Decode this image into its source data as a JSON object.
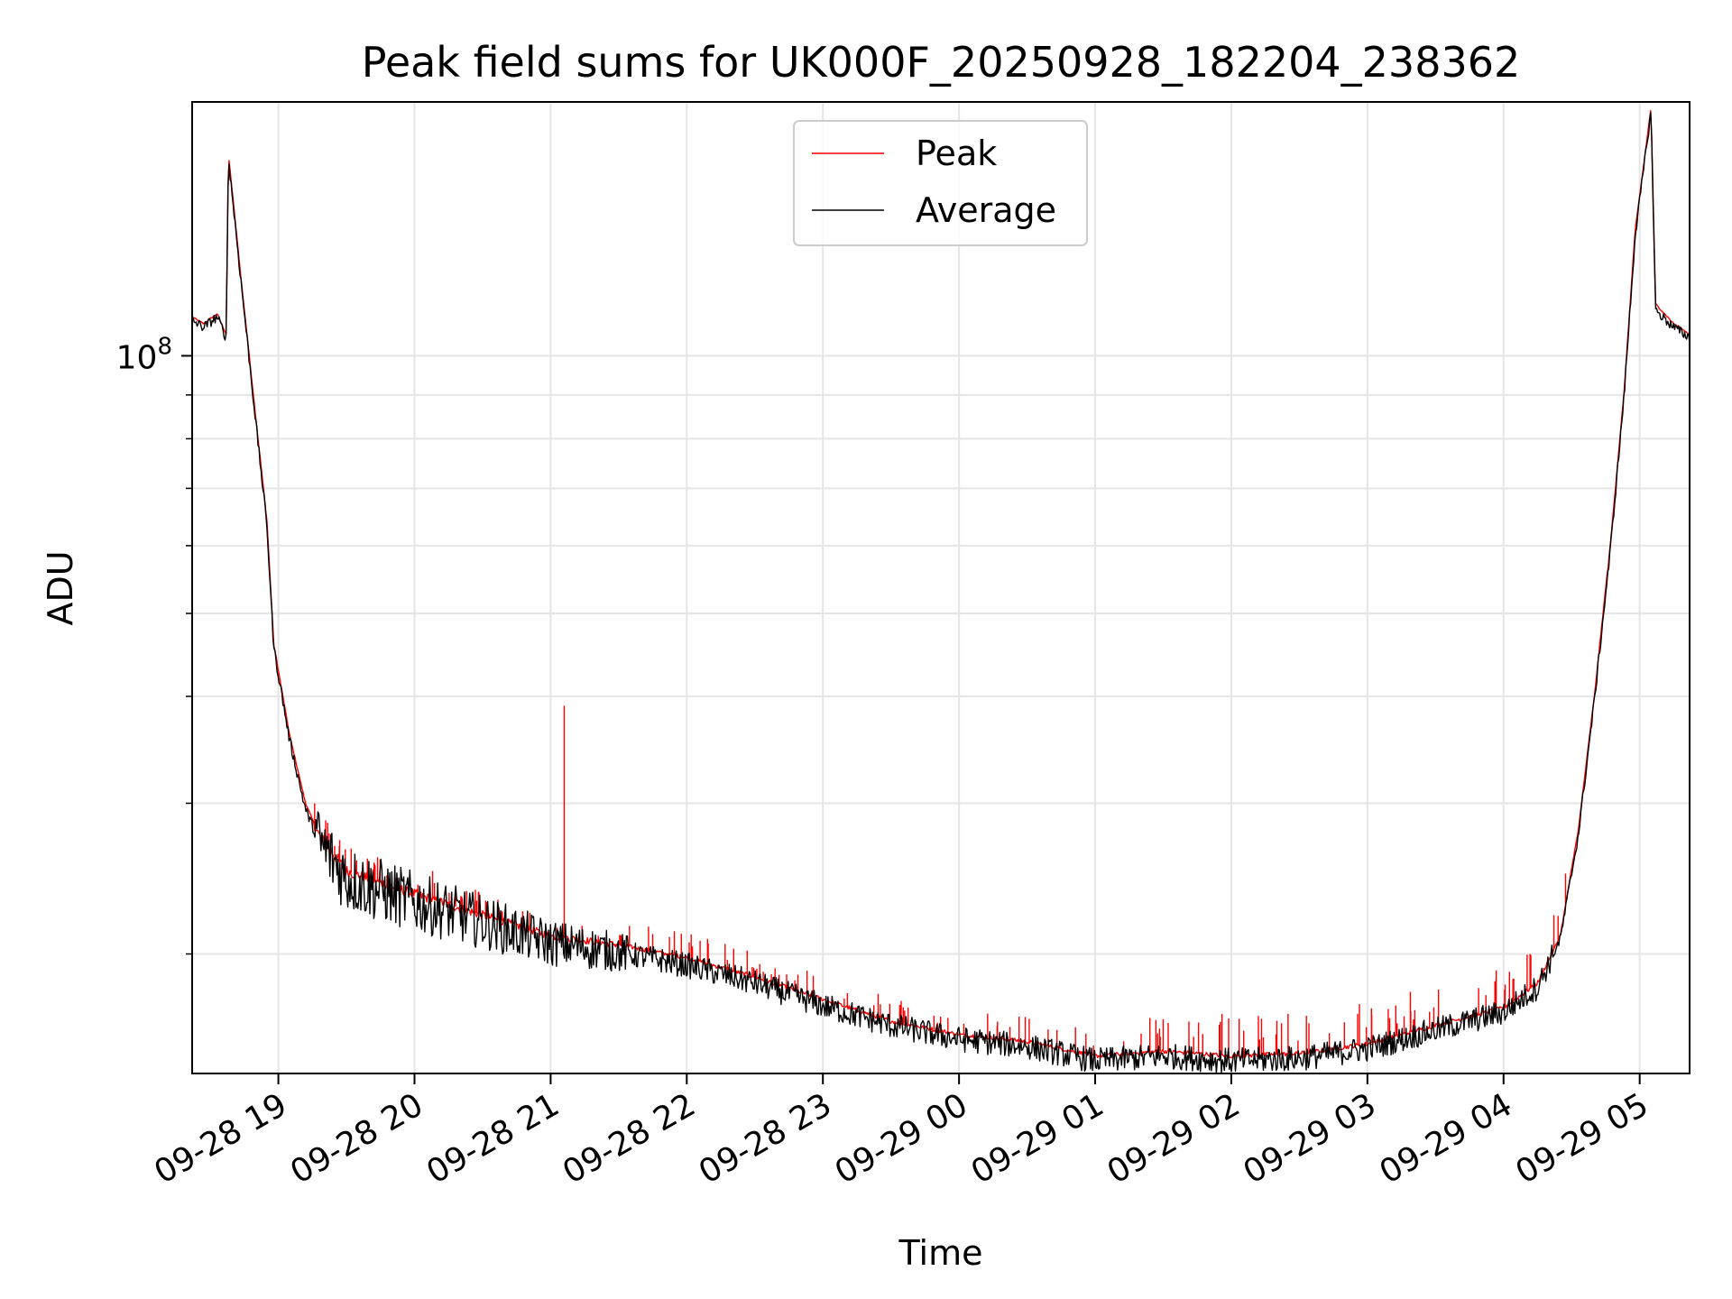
{
  "chart_data": {
    "type": "line",
    "title": "Peak field sums for UK000F_20250928_182204_238362",
    "xlabel": "Time",
    "ylabel": "ADU",
    "yscale": "log",
    "x_type": "datetime",
    "xlim": [
      "2025-09-28 18:22",
      "2025-09-29 05:22"
    ],
    "ylim": [
      14500000,
      198000000
    ],
    "x_ticks": [
      "09-28 19",
      "09-28 20",
      "09-28 21",
      "09-28 22",
      "09-28 23",
      "09-29 00",
      "09-29 01",
      "09-29 02",
      "09-29 03",
      "09-29 04",
      "09-29 05"
    ],
    "y_tick_labels": [
      {
        "base": "10",
        "exp": "8"
      }
    ],
    "grid": true,
    "legend": {
      "placement": "top-center",
      "entries": [
        "Peak",
        "Average"
      ]
    },
    "series": [
      {
        "name": "Peak",
        "color": "#ff0000",
        "spike_count": 170,
        "notable_spikes": [
          [
            "2025-09-28 19:16",
            30000000
          ],
          [
            "2025-09-28 20:08",
            25000000
          ],
          [
            "2025-09-28 21:06",
            39000000
          ],
          [
            "2025-09-28 21:21",
            21000000
          ]
        ],
        "points": [
          [
            "2025-09-28 18:22",
            111000000
          ],
          [
            "2025-09-28 18:27",
            109000000
          ],
          [
            "2025-09-28 18:33",
            112000000
          ],
          [
            "2025-09-28 18:37",
            106000000
          ],
          [
            "2025-09-28 18:38",
            172000000
          ],
          [
            "2025-09-28 18:44",
            120000000
          ],
          [
            "2025-09-28 18:50",
            85000000
          ],
          [
            "2025-09-28 18:55",
            64000000
          ],
          [
            "2025-09-28 18:58",
            46000000
          ],
          [
            "2025-09-28 19:05",
            36000000
          ],
          [
            "2025-09-28 19:12",
            30000000
          ],
          [
            "2025-09-28 19:18",
            27500000
          ],
          [
            "2025-09-28 19:30",
            25000000
          ],
          [
            "2025-09-28 20:00",
            23500000
          ],
          [
            "2025-09-28 20:30",
            22200000
          ],
          [
            "2025-09-28 21:00",
            21000000
          ],
          [
            "2025-09-28 21:30",
            20500000
          ],
          [
            "2025-09-28 22:00",
            19800000
          ],
          [
            "2025-09-28 22:30",
            18800000
          ],
          [
            "2025-09-28 23:00",
            17700000
          ],
          [
            "2025-09-28 23:30",
            16700000
          ],
          [
            "2025-09-29 00:00",
            16100000
          ],
          [
            "2025-09-29 00:30",
            15800000
          ],
          [
            "2025-09-29 00:45",
            15500000
          ],
          [
            "2025-09-29 01:00",
            15200000
          ],
          [
            "2025-09-29 01:30",
            15400000
          ],
          [
            "2025-09-29 02:00",
            15200000
          ],
          [
            "2025-09-29 02:30",
            15300000
          ],
          [
            "2025-09-29 03:00",
            15700000
          ],
          [
            "2025-09-29 03:30",
            16500000
          ],
          [
            "2025-09-29 04:00",
            17300000
          ],
          [
            "2025-09-29 04:15",
            18500000
          ],
          [
            "2025-09-29 04:25",
            21000000
          ],
          [
            "2025-09-29 04:33",
            28000000
          ],
          [
            "2025-09-29 04:40",
            40000000
          ],
          [
            "2025-09-29 04:47",
            60000000
          ],
          [
            "2025-09-29 04:53",
            90000000
          ],
          [
            "2025-09-29 04:58",
            140000000
          ],
          [
            "2025-09-29 05:05",
            195000000
          ],
          [
            "2025-09-29 05:07",
            115000000
          ],
          [
            "2025-09-29 05:15",
            109000000
          ],
          [
            "2025-09-29 05:22",
            106000000
          ]
        ]
      },
      {
        "name": "Average",
        "color": "#000000",
        "points": [
          [
            "2025-09-28 18:22",
            110000000
          ],
          [
            "2025-09-28 18:27",
            108000000
          ],
          [
            "2025-09-28 18:33",
            111000000
          ],
          [
            "2025-09-28 18:37",
            105000000
          ],
          [
            "2025-09-28 18:38",
            170000000
          ],
          [
            "2025-09-28 18:44",
            119000000
          ],
          [
            "2025-09-28 18:50",
            84000000
          ],
          [
            "2025-09-28 18:55",
            63000000
          ],
          [
            "2025-09-28 18:58",
            45500000
          ],
          [
            "2025-09-28 19:05",
            35500000
          ],
          [
            "2025-09-28 19:12",
            29500000
          ],
          [
            "2025-09-28 19:18",
            27000000
          ],
          [
            "2025-09-28 19:30",
            24500000
          ],
          [
            "2025-09-28 20:00",
            23000000
          ],
          [
            "2025-09-28 20:30",
            21800000
          ],
          [
            "2025-09-28 21:00",
            20600000
          ],
          [
            "2025-09-28 21:30",
            20100000
          ],
          [
            "2025-09-28 22:00",
            19400000
          ],
          [
            "2025-09-28 22:30",
            18500000
          ],
          [
            "2025-09-28 23:00",
            17400000
          ],
          [
            "2025-09-28 23:30",
            16500000
          ],
          [
            "2025-09-29 00:00",
            15900000
          ],
          [
            "2025-09-29 00:30",
            15600000
          ],
          [
            "2025-09-29 00:45",
            15300000
          ],
          [
            "2025-09-29 01:00",
            15000000
          ],
          [
            "2025-09-29 01:30",
            15200000
          ],
          [
            "2025-09-29 02:00",
            15000000
          ],
          [
            "2025-09-29 02:30",
            15100000
          ],
          [
            "2025-09-29 03:00",
            15500000
          ],
          [
            "2025-09-29 03:30",
            16300000
          ],
          [
            "2025-09-29 04:00",
            17100000
          ],
          [
            "2025-09-29 04:15",
            18300000
          ],
          [
            "2025-09-29 04:25",
            20800000
          ],
          [
            "2025-09-29 04:33",
            27600000
          ],
          [
            "2025-09-29 04:40",
            39500000
          ],
          [
            "2025-09-29 04:47",
            59000000
          ],
          [
            "2025-09-29 04:53",
            89000000
          ],
          [
            "2025-09-29 04:58",
            138000000
          ],
          [
            "2025-09-29 05:05",
            193000000
          ],
          [
            "2025-09-29 05:07",
            113000000
          ],
          [
            "2025-09-29 05:15",
            108000000
          ],
          [
            "2025-09-29 05:22",
            105000000
          ]
        ]
      }
    ]
  }
}
